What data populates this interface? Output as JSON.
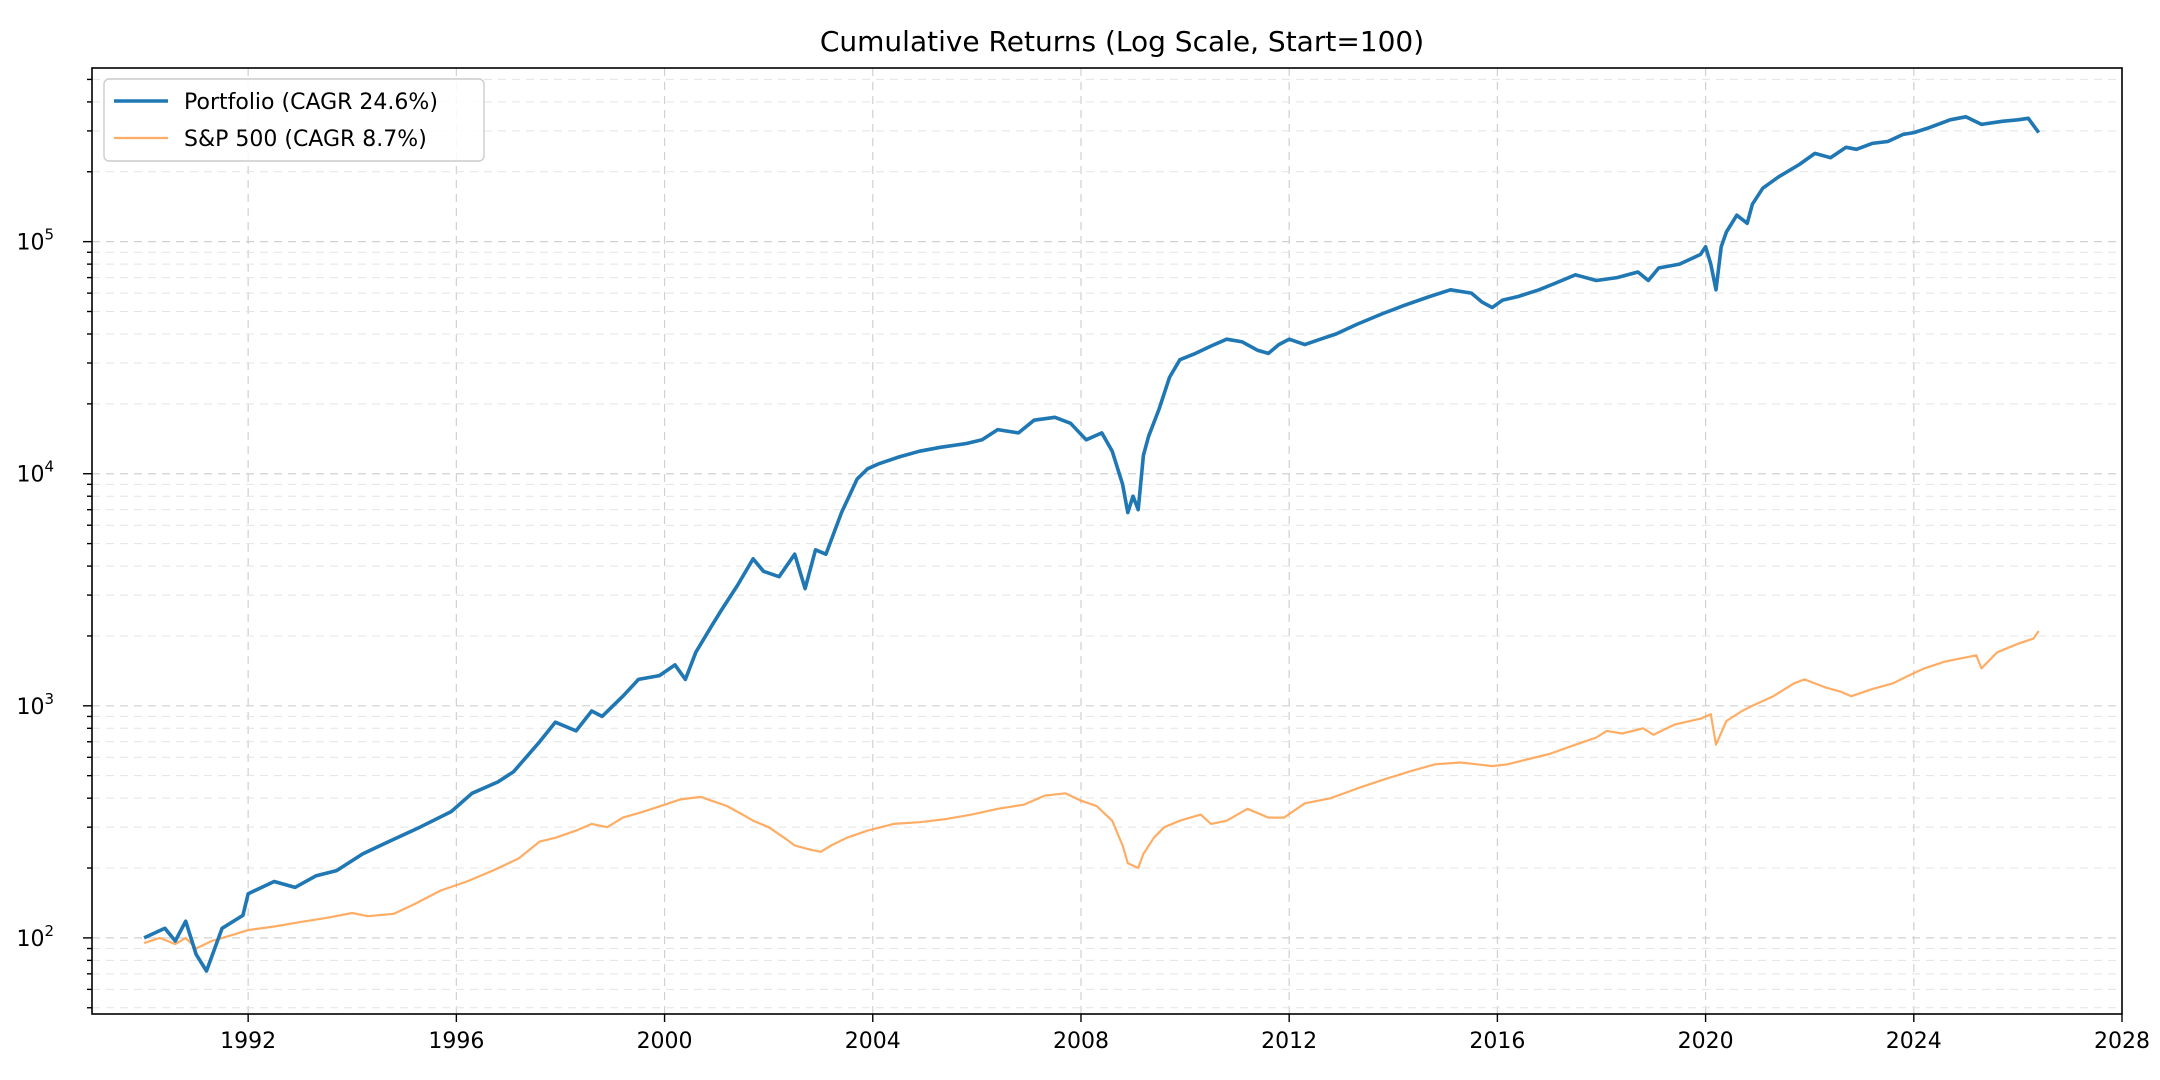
{
  "chart_data": {
    "type": "line",
    "title": "Cumulative Returns (Log Scale, Start=100)",
    "xlabel": "",
    "ylabel": "",
    "y_scale": "log",
    "xlim": [
      1989.0,
      2028.0
    ],
    "ylim": [
      47,
      560000
    ],
    "x_ticks": [
      1992,
      1996,
      2000,
      2004,
      2008,
      2012,
      2016,
      2020,
      2024,
      2028
    ],
    "y_ticks": [
      {
        "value": 100,
        "base": "10",
        "exp": "2"
      },
      {
        "value": 1000,
        "base": "10",
        "exp": "3"
      },
      {
        "value": 10000,
        "base": "10",
        "exp": "4"
      },
      {
        "value": 100000,
        "base": "10",
        "exp": "5"
      }
    ],
    "grid": true,
    "legend_position": "top-left",
    "colors": {
      "Portfolio": "#1f77b4",
      "S&P 500": "#ff9f4a"
    },
    "series": [
      {
        "name": "Portfolio (CAGR 24.6%)",
        "x": [
          1990.0,
          1990.4,
          1990.6,
          1990.8,
          1991.0,
          1991.2,
          1991.5,
          1991.9,
          1992.0,
          1992.5,
          1992.9,
          1993.3,
          1993.7,
          1994.2,
          1994.7,
          1995.3,
          1995.9,
          1996.3,
          1996.8,
          1997.1,
          1997.6,
          1997.9,
          1998.3,
          1998.6,
          1998.8,
          1999.2,
          1999.5,
          1999.9,
          2000.2,
          2000.4,
          2000.6,
          2000.9,
          2001.1,
          2001.4,
          2001.7,
          2001.9,
          2002.2,
          2002.5,
          2002.7,
          2002.9,
          2003.1,
          2003.4,
          2003.7,
          2003.9,
          2004.1,
          2004.5,
          2004.9,
          2005.3,
          2005.8,
          2006.1,
          2006.4,
          2006.8,
          2007.1,
          2007.5,
          2007.8,
          2008.1,
          2008.4,
          2008.6,
          2008.8,
          2008.9,
          2009.0,
          2009.1,
          2009.2,
          2009.3,
          2009.5,
          2009.7,
          2009.9,
          2010.2,
          2010.5,
          2010.8,
          2011.1,
          2011.4,
          2011.6,
          2011.8,
          2012.0,
          2012.3,
          2012.6,
          2012.9,
          2013.3,
          2013.8,
          2014.2,
          2014.7,
          2015.1,
          2015.5,
          2015.7,
          2015.9,
          2016.1,
          2016.4,
          2016.8,
          2017.1,
          2017.5,
          2017.9,
          2018.3,
          2018.7,
          2018.9,
          2019.1,
          2019.5,
          2019.9,
          2020.0,
          2020.1,
          2020.2,
          2020.3,
          2020.4,
          2020.6,
          2020.8,
          2020.9,
          2021.1,
          2021.4,
          2021.8,
          2022.1,
          2022.4,
          2022.7,
          2022.9,
          2023.2,
          2023.5,
          2023.8,
          2024.0,
          2024.3,
          2024.7,
          2025.0,
          2025.3,
          2025.7,
          2026.0,
          2026.2,
          2026.4
        ],
        "y": [
          100,
          110,
          97,
          118,
          85,
          72,
          110,
          125,
          155,
          175,
          165,
          185,
          195,
          230,
          260,
          300,
          350,
          420,
          470,
          520,
          700,
          850,
          780,
          950,
          900,
          1100,
          1300,
          1350,
          1500,
          1300,
          1700,
          2200,
          2600,
          3300,
          4300,
          3800,
          3600,
          4500,
          3200,
          4700,
          4500,
          6800,
          9500,
          10500,
          11000,
          11800,
          12500,
          13000,
          13500,
          14000,
          15500,
          15000,
          17000,
          17500,
          16500,
          14000,
          15000,
          12500,
          9000,
          6800,
          8000,
          7000,
          12000,
          14500,
          19000,
          26000,
          31000,
          33000,
          35500,
          38000,
          37000,
          34000,
          33000,
          36000,
          38000,
          36000,
          38000,
          40000,
          44000,
          49000,
          53000,
          58000,
          62000,
          60000,
          55000,
          52000,
          56000,
          58000,
          62000,
          66000,
          72000,
          68000,
          70000,
          74000,
          68000,
          77000,
          80000,
          88000,
          95000,
          80000,
          62000,
          95000,
          110000,
          130000,
          120000,
          145000,
          170000,
          190000,
          215000,
          240000,
          230000,
          255000,
          250000,
          265000,
          270000,
          290000,
          295000,
          310000,
          335000,
          345000,
          320000,
          330000,
          335000,
          340000,
          295000
        ]
      },
      {
        "name": "S&P 500 (CAGR 8.7%)",
        "x": [
          1990.0,
          1990.3,
          1990.6,
          1990.8,
          1991.0,
          1991.3,
          1991.7,
          1992.0,
          1992.5,
          1993.0,
          1993.5,
          1994.0,
          1994.3,
          1994.8,
          1995.2,
          1995.7,
          1996.2,
          1996.7,
          1997.2,
          1997.6,
          1997.9,
          1998.3,
          1998.6,
          1998.9,
          1999.2,
          1999.6,
          2000.0,
          2000.3,
          2000.7,
          2000.9,
          2001.2,
          2001.5,
          2001.7,
          2002.0,
          2002.3,
          2002.5,
          2002.8,
          2003.0,
          2003.2,
          2003.5,
          2003.9,
          2004.4,
          2004.9,
          2005.4,
          2005.9,
          2006.4,
          2006.9,
          2007.3,
          2007.7,
          2008.0,
          2008.3,
          2008.6,
          2008.8,
          2008.9,
          2009.1,
          2009.2,
          2009.4,
          2009.6,
          2009.9,
          2010.3,
          2010.5,
          2010.8,
          2011.2,
          2011.6,
          2011.9,
          2012.3,
          2012.8,
          2013.3,
          2013.8,
          2014.3,
          2014.8,
          2015.3,
          2015.6,
          2015.9,
          2016.2,
          2016.6,
          2017.0,
          2017.5,
          2017.9,
          2018.1,
          2018.4,
          2018.8,
          2019.0,
          2019.4,
          2019.9,
          2020.1,
          2020.2,
          2020.4,
          2020.7,
          2020.9,
          2021.3,
          2021.7,
          2021.9,
          2022.3,
          2022.6,
          2022.8,
          2023.2,
          2023.6,
          2023.9,
          2024.2,
          2024.6,
          2024.9,
          2025.2,
          2025.3,
          2025.6,
          2026.0,
          2026.3,
          2026.4
        ],
        "y": [
          95,
          100,
          94,
          100,
          90,
          97,
          103,
          108,
          112,
          117,
          122,
          128,
          124,
          127,
          140,
          160,
          175,
          195,
          220,
          260,
          270,
          290,
          310,
          300,
          330,
          350,
          375,
          395,
          405,
          390,
          370,
          340,
          320,
          300,
          270,
          250,
          240,
          235,
          250,
          270,
          290,
          310,
          315,
          325,
          340,
          360,
          375,
          410,
          420,
          390,
          370,
          320,
          250,
          210,
          200,
          230,
          270,
          300,
          320,
          340,
          310,
          320,
          360,
          330,
          330,
          380,
          400,
          440,
          480,
          520,
          560,
          570,
          560,
          550,
          560,
          590,
          620,
          680,
          730,
          780,
          760,
          800,
          750,
          830,
          880,
          920,
          680,
          860,
          950,
          1000,
          1100,
          1250,
          1300,
          1200,
          1150,
          1100,
          1180,
          1250,
          1350,
          1450,
          1550,
          1600,
          1650,
          1450,
          1700,
          1850,
          1950,
          2100
        ]
      }
    ]
  }
}
